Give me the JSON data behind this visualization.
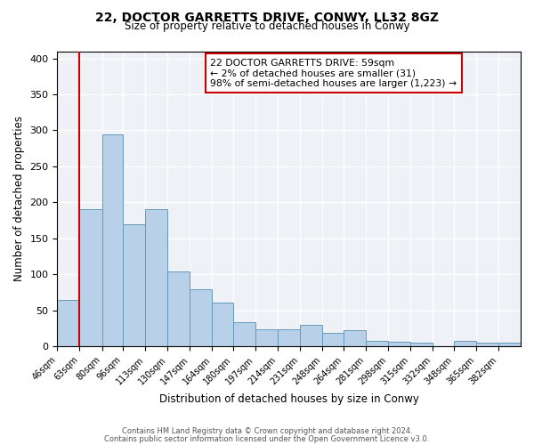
{
  "title": "22, DOCTOR GARRETTS DRIVE, CONWY, LL32 8GZ",
  "subtitle": "Size of property relative to detached houses in Conwy",
  "xlabel": "Distribution of detached houses by size in Conwy",
  "ylabel": "Number of detached properties",
  "bar_labels": [
    "46sqm",
    "63sqm",
    "80sqm",
    "96sqm",
    "113sqm",
    "130sqm",
    "147sqm",
    "164sqm",
    "180sqm",
    "197sqm",
    "214sqm",
    "231sqm",
    "248sqm",
    "264sqm",
    "281sqm",
    "298sqm",
    "315sqm",
    "332sqm",
    "348sqm",
    "365sqm",
    "382sqm"
  ],
  "bar_heights": [
    64,
    190,
    295,
    170,
    190,
    104,
    79,
    61,
    34,
    24,
    24,
    30,
    19,
    22,
    8,
    6,
    5,
    0,
    7,
    5,
    5
  ],
  "bar_color": "#b8d0e8",
  "bar_edge_color": "#6699bb",
  "ylim": [
    0,
    410
  ],
  "yticks": [
    0,
    50,
    100,
    150,
    200,
    250,
    300,
    350,
    400
  ],
  "annotation_line1": "22 DOCTOR GARRETTS DRIVE: 59sqm",
  "annotation_line2": "← 2% of detached houses are smaller (31)",
  "annotation_line3": "98% of semi-detached houses are larger (1,223) →",
  "vline_color": "#cc0000",
  "annotation_box_color": "#cc0000",
  "footnote1": "Contains HM Land Registry data © Crown copyright and database right 2024.",
  "footnote2": "Contains public sector information licensed under the Open Government Licence v3.0.",
  "background_color": "#eef2f7",
  "bin_edges": [
    46,
    63,
    80,
    96,
    113,
    130,
    147,
    164,
    180,
    197,
    214,
    231,
    248,
    264,
    281,
    298,
    315,
    332,
    348,
    365,
    382,
    399
  ]
}
